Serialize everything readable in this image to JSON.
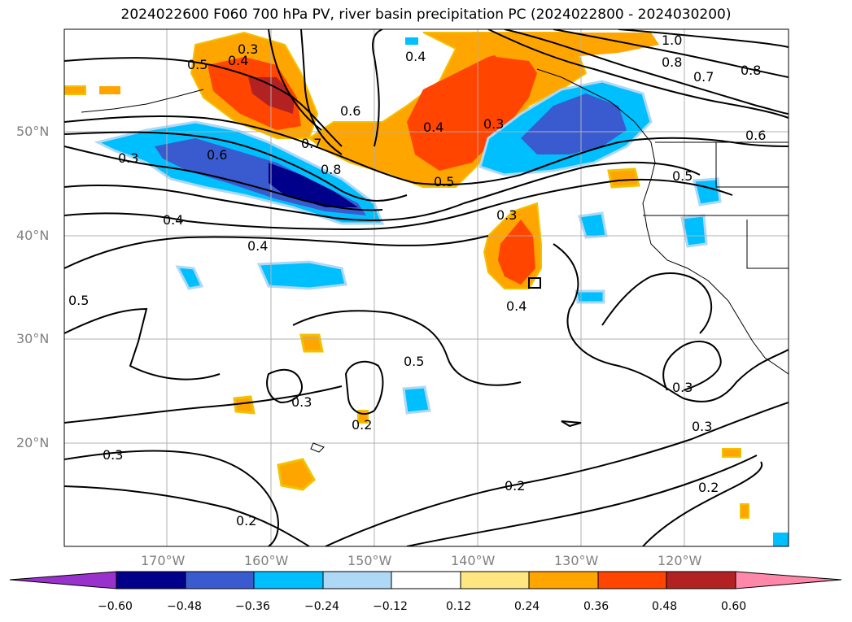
{
  "title": "2024022600 F060 700 hPa PV, river basin precipitation PC (2024022800 - 2024030200)",
  "lat_labels": [
    "50°N",
    "40°N",
    "30°N",
    "20°N"
  ],
  "lon_labels": [
    "170°W",
    "160°W",
    "150°W",
    "140°W",
    "130°W",
    "120°W"
  ],
  "contour_labels": [
    "0.3",
    "0.5",
    "0.4",
    "0.4",
    "0.6",
    "1.0",
    "0.8",
    "0.7",
    "0.8",
    "0.6",
    "0.4",
    "0.3",
    "0.7",
    "0.8",
    "0.5",
    "0.5",
    "0.6",
    "0.3",
    "0.4",
    "0.4",
    "0.5",
    "0.3",
    "0.4",
    "0.5",
    "0.3",
    "0.3",
    "0.2",
    "0.3",
    "0.3",
    "0.2",
    "0.2"
  ],
  "colorbar": {
    "ticks": [
      "−0.60",
      "−0.48",
      "−0.36",
      "−0.24",
      "−0.12",
      "0.12",
      "0.24",
      "0.36",
      "0.48",
      "0.60"
    ],
    "colors": {
      "lt_m060": "#9932cc",
      "m060_m048": "#00008b",
      "m048_m036": "#3a5bcf",
      "m036_m024": "#00bfff",
      "m024_m012": "#add8f6",
      "m012_012": "#ffffff",
      "012_024": "#ffe680",
      "024_036": "#ffa500",
      "036_048": "#ff4500",
      "048_060": "#b22222",
      "gt_060": "#ff88aa"
    }
  }
}
